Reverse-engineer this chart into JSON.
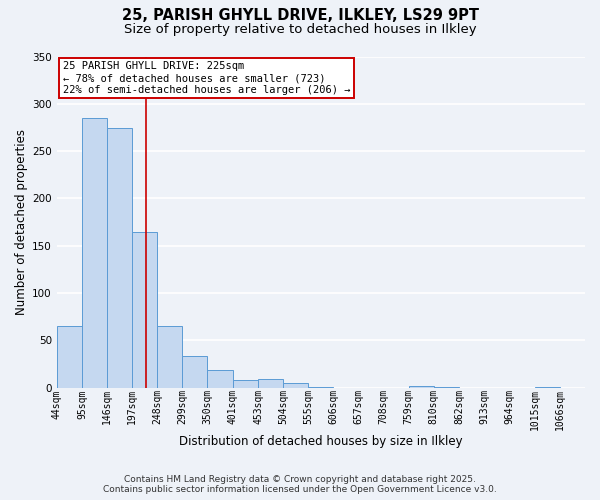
{
  "title_line1": "25, PARISH GHYLL DRIVE, ILKLEY, LS29 9PT",
  "title_line2": "Size of property relative to detached houses in Ilkley",
  "xlabel": "Distribution of detached houses by size in Ilkley",
  "ylabel": "Number of detached properties",
  "bar_left_edges": [
    44,
    95,
    146,
    197,
    248,
    299,
    350,
    401,
    453,
    504,
    555,
    606,
    657,
    708,
    759,
    810,
    862,
    913,
    964,
    1015
  ],
  "bar_heights": [
    65,
    285,
    274,
    165,
    65,
    34,
    19,
    8,
    9,
    5,
    1,
    0,
    0,
    0,
    2,
    1,
    0,
    0,
    0,
    1
  ],
  "bin_width": 51,
  "bar_color": "#c5d8f0",
  "bar_edge_color": "#5b9bd5",
  "property_line_x": 225,
  "property_line_color": "#cc0000",
  "annotation_line1": "25 PARISH GHYLL DRIVE: 225sqm",
  "annotation_line2": "← 78% of detached houses are smaller (723)",
  "annotation_line3": "22% of semi-detached houses are larger (206) →",
  "annotation_box_color": "#ffffff",
  "annotation_box_edge_color": "#cc0000",
  "ylim": [
    0,
    350
  ],
  "xlim": [
    44,
    1117
  ],
  "tick_labels": [
    "44sqm",
    "95sqm",
    "146sqm",
    "197sqm",
    "248sqm",
    "299sqm",
    "350sqm",
    "401sqm",
    "453sqm",
    "504sqm",
    "555sqm",
    "606sqm",
    "657sqm",
    "708sqm",
    "759sqm",
    "810sqm",
    "862sqm",
    "913sqm",
    "964sqm",
    "1015sqm",
    "1066sqm"
  ],
  "tick_positions": [
    44,
    95,
    146,
    197,
    248,
    299,
    350,
    401,
    453,
    504,
    555,
    606,
    657,
    708,
    759,
    810,
    862,
    913,
    964,
    1015,
    1066
  ],
  "footnote1": "Contains HM Land Registry data © Crown copyright and database right 2025.",
  "footnote2": "Contains public sector information licensed under the Open Government Licence v3.0.",
  "bg_color": "#eef2f8",
  "grid_color": "#ffffff",
  "title_fontsize": 10.5,
  "subtitle_fontsize": 9.5,
  "axis_label_fontsize": 8.5,
  "tick_fontsize": 7,
  "annotation_fontsize": 7.5,
  "footnote_fontsize": 6.5
}
